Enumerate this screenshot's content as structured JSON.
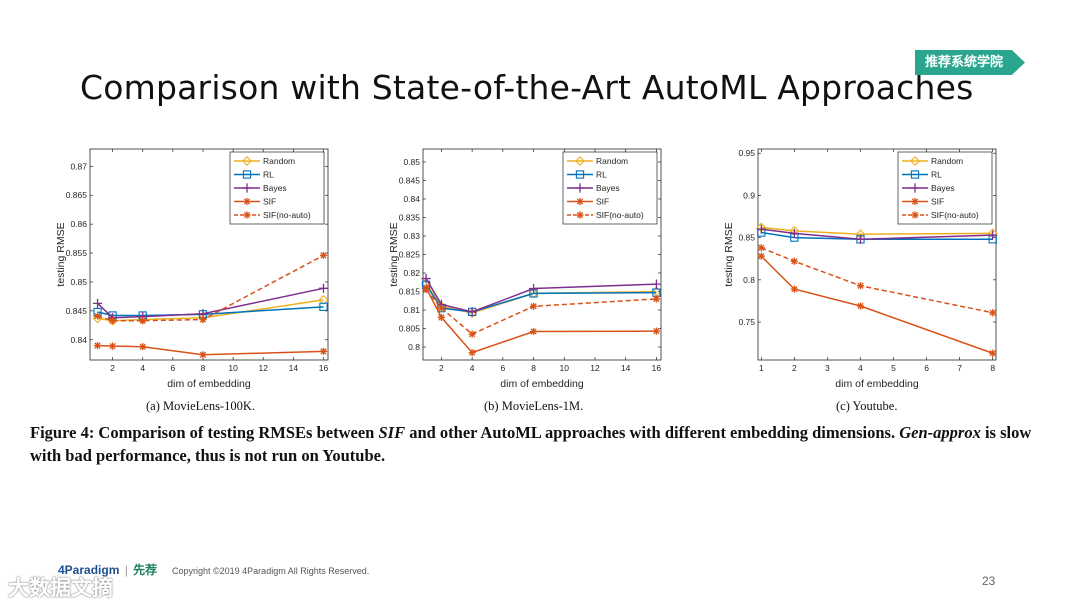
{
  "slide": {
    "title": "Comparison with State-of-the-Art AutoML Approaches",
    "badge": "推荐系统学院",
    "figure_caption_prefix": "Figure 4: Comparison of testing RMSEs between ",
    "figure_caption_sif": "SIF",
    "figure_caption_mid": " and other AutoML approaches with different embedding dimensions. ",
    "figure_caption_gen": "Gen-approx",
    "figure_caption_suffix": " is slow with bad performance, thus is not run on Youtube.",
    "footer_logo_a": "4Paradigm",
    "footer_logo_sep": "|",
    "footer_logo_b": "先荐",
    "copyright": "Copyright ©2019 4Paradigm All Rights Reserved.",
    "page_number": "23",
    "watermark": "大数据文摘"
  },
  "colors": {
    "Random": "#edb120",
    "RL": "#0072bd",
    "Bayes": "#7e2f8e",
    "SIF": "#d95319",
    "SIF(no-auto)": "#d95319",
    "badge": "#2aa68f"
  },
  "chart_data": [
    {
      "type": "line",
      "caption": "(a)  MovieLens-100K.",
      "xlabel": "dim of embedding",
      "ylabel": "testing RMSE",
      "xlim": [
        0.5,
        16.3
      ],
      "ylim": [
        0.8365,
        0.873
      ],
      "xticks": [
        2,
        4,
        6,
        8,
        10,
        12,
        14,
        16
      ],
      "yticks": [
        0.84,
        0.845,
        0.85,
        0.855,
        0.86,
        0.865,
        0.87
      ],
      "ytick_labels": [
        "0.84",
        "0.845",
        "0.85",
        "0.855",
        "0.86",
        "0.865",
        "0.87"
      ],
      "legend": "top-right",
      "x": [
        1,
        2,
        4,
        8,
        16
      ],
      "series": [
        {
          "name": "Random",
          "marker": "diamond",
          "dash": false,
          "values": [
            0.8437,
            0.8433,
            0.8435,
            0.8438,
            0.8469
          ]
        },
        {
          "name": "RL",
          "marker": "square",
          "dash": false,
          "values": [
            0.8448,
            0.8442,
            0.8442,
            0.8444,
            0.8457
          ]
        },
        {
          "name": "Bayes",
          "marker": "plus",
          "dash": false,
          "values": [
            0.8463,
            0.8438,
            0.844,
            0.8445,
            0.8489
          ]
        },
        {
          "name": "SIF",
          "marker": "asterisk",
          "dash": false,
          "values": [
            0.839,
            0.8389,
            0.8388,
            0.8374,
            0.838
          ]
        },
        {
          "name": "SIF(no-auto)",
          "marker": "asterisk",
          "dash": true,
          "values": [
            0.8441,
            0.8433,
            0.8433,
            0.8435,
            0.8546
          ]
        }
      ]
    },
    {
      "type": "line",
      "caption": "(b)  MovieLens-1M.",
      "xlabel": "dim of embedding",
      "ylabel": "testing RMSE",
      "xlim": [
        0.8,
        16.3
      ],
      "ylim": [
        0.7965,
        0.8535
      ],
      "xticks": [
        2,
        4,
        6,
        8,
        10,
        12,
        14,
        16
      ],
      "yticks": [
        0.8,
        0.805,
        0.81,
        0.815,
        0.82,
        0.825,
        0.83,
        0.835,
        0.84,
        0.845,
        0.85
      ],
      "ytick_labels": [
        "0.8",
        "0.805",
        "0.81",
        "0.815",
        "0.82",
        "0.825",
        "0.83",
        "0.835",
        "0.84",
        "0.845",
        "0.85"
      ],
      "legend": "top-right",
      "x": [
        1,
        2,
        4,
        8,
        16
      ],
      "series": [
        {
          "name": "Random",
          "marker": "diamond",
          "dash": false,
          "values": [
            0.8172,
            0.811,
            0.8092,
            0.8145,
            0.815
          ]
        },
        {
          "name": "RL",
          "marker": "square",
          "dash": false,
          "values": [
            0.8168,
            0.8105,
            0.8095,
            0.8145,
            0.8147
          ]
        },
        {
          "name": "Bayes",
          "marker": "plus",
          "dash": false,
          "values": [
            0.8185,
            0.8115,
            0.8095,
            0.8158,
            0.817
          ]
        },
        {
          "name": "SIF",
          "marker": "asterisk",
          "dash": false,
          "values": [
            0.816,
            0.808,
            0.7985,
            0.8042,
            0.8043
          ]
        },
        {
          "name": "SIF(no-auto)",
          "marker": "asterisk",
          "dash": true,
          "values": [
            0.8155,
            0.8105,
            0.8035,
            0.811,
            0.813
          ]
        }
      ]
    },
    {
      "type": "line",
      "caption": "(c)  Youtube.",
      "xlabel": "dim of embedding",
      "ylabel": "testing RMSE",
      "xlim": [
        0.9,
        8.1
      ],
      "ylim": [
        0.705,
        0.955
      ],
      "xticks": [
        1,
        2,
        3,
        4,
        5,
        6,
        7,
        8
      ],
      "yticks": [
        0.75,
        0.8,
        0.85,
        0.9,
        0.95
      ],
      "ytick_labels": [
        "0.75",
        "0.8",
        "0.85",
        "0.9",
        "0.95"
      ],
      "legend": "top-right",
      "x": [
        1,
        2,
        4,
        8
      ],
      "series": [
        {
          "name": "Random",
          "marker": "diamond",
          "dash": false,
          "values": [
            0.862,
            0.858,
            0.854,
            0.855
          ]
        },
        {
          "name": "RL",
          "marker": "square",
          "dash": false,
          "values": [
            0.856,
            0.85,
            0.848,
            0.848
          ]
        },
        {
          "name": "Bayes",
          "marker": "plus",
          "dash": false,
          "values": [
            0.86,
            0.855,
            0.848,
            0.853
          ]
        },
        {
          "name": "SIF",
          "marker": "asterisk",
          "dash": false,
          "values": [
            0.828,
            0.789,
            0.769,
            0.713
          ]
        },
        {
          "name": "SIF(no-auto)",
          "marker": "asterisk",
          "dash": true,
          "values": [
            0.838,
            0.822,
            0.793,
            0.761
          ]
        }
      ]
    }
  ]
}
